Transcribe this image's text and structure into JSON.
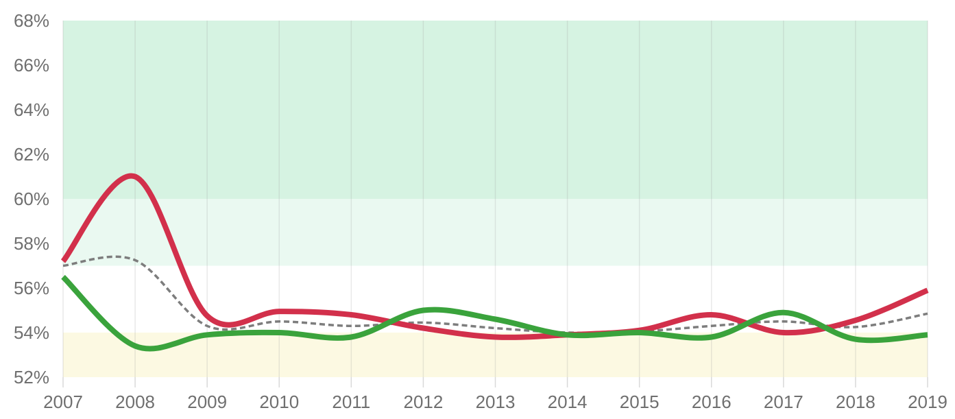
{
  "chart_data": {
    "type": "line",
    "title": "",
    "xlabel": "",
    "ylabel": "",
    "x": [
      2007,
      2008,
      2009,
      2010,
      2011,
      2012,
      2013,
      2014,
      2015,
      2016,
      2017,
      2018,
      2019
    ],
    "x_tick_labels": [
      "2007",
      "2008",
      "2009",
      "2010",
      "2011",
      "2012",
      "2013",
      "2014",
      "2015",
      "2016",
      "2017",
      "2018",
      "2019"
    ],
    "y_tick_labels": [
      "52%",
      "54%",
      "56%",
      "58%",
      "60%",
      "62%",
      "64%",
      "66%",
      "68%"
    ],
    "y_ticks": [
      52,
      54,
      56,
      58,
      60,
      62,
      64,
      66,
      68
    ],
    "ylim": [
      52,
      68
    ],
    "grid": "vertical-only",
    "legend_position": "none",
    "series": [
      {
        "name": "gray-dashed-line",
        "color": "#7d7d7d",
        "style": "dashed",
        "width": 3.5,
        "values": [
          57.0,
          57.25,
          54.3,
          54.5,
          54.3,
          54.45,
          54.2,
          54.0,
          54.05,
          54.3,
          54.5,
          54.25,
          54.85
        ]
      },
      {
        "name": "red-line",
        "color": "#d2304b",
        "style": "solid",
        "width": 8,
        "values": [
          57.2,
          61.0,
          54.75,
          54.95,
          54.8,
          54.2,
          53.8,
          53.9,
          54.1,
          54.8,
          54.0,
          54.55,
          55.9
        ]
      },
      {
        "name": "green-line",
        "color": "#3aa33c",
        "style": "solid",
        "width": 8,
        "values": [
          56.5,
          53.4,
          53.9,
          54.0,
          53.8,
          55.0,
          54.6,
          53.9,
          54.0,
          53.8,
          54.9,
          53.7,
          53.9
        ]
      }
    ],
    "bands": [
      {
        "from": 60,
        "to": 68,
        "color": "#d6f3e2"
      },
      {
        "from": 57,
        "to": 60,
        "color": "#eaf9f1"
      },
      {
        "from": 54,
        "to": 57,
        "color": "#ffffff"
      },
      {
        "from": 52,
        "to": 54,
        "color": "#fcf9e2"
      }
    ],
    "colors": {
      "axis_label": "#6f6f6f",
      "gridline": "#9a9a9a",
      "tick_stub": "#d9d9d9",
      "background": "#ffffff"
    }
  }
}
